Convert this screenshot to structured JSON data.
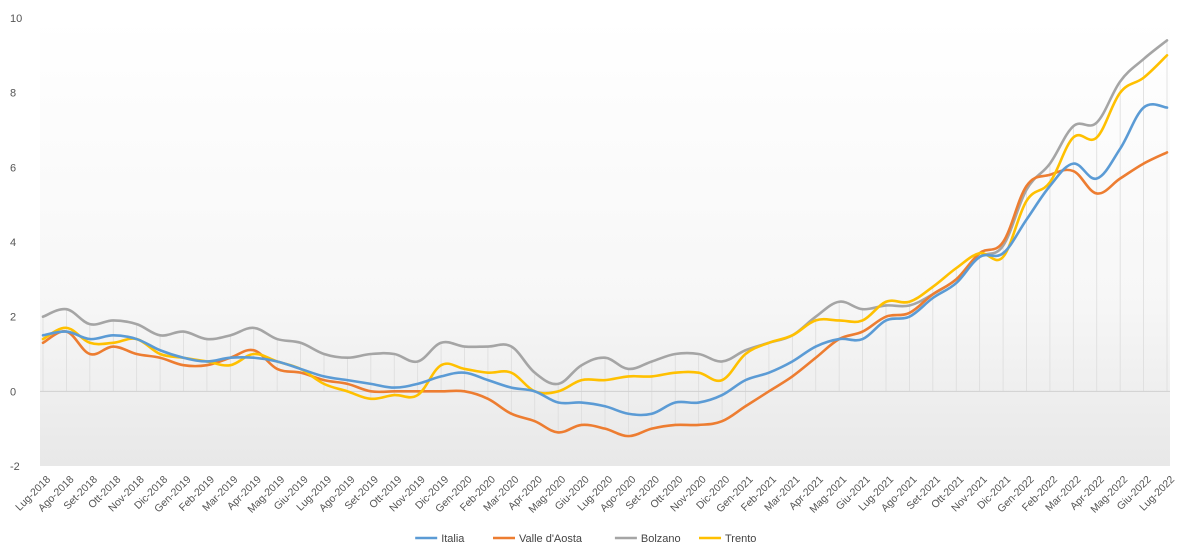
{
  "chart_data": {
    "type": "line",
    "title": "",
    "xlabel": "",
    "ylabel": "",
    "ylim": [
      -2,
      10
    ],
    "yticks": [
      "-2",
      "0",
      "2",
      "4",
      "6",
      "8",
      "10"
    ],
    "grid": "vertical-lines",
    "legend_position": "bottom",
    "categories": [
      "Lug-2018",
      "Ago-2018",
      "Set-2018",
      "Ott-2018",
      "Nov-2018",
      "Dic-2018",
      "Gen-2019",
      "Feb-2019",
      "Mar-2019",
      "Apr-2019",
      "Mag-2019",
      "Giu-2019",
      "Lug-2019",
      "Ago-2019",
      "Set-2019",
      "Ott-2019",
      "Nov-2019",
      "Dic-2019",
      "Gen-2020",
      "Feb-2020",
      "Mar-2020",
      "Apr-2020",
      "Mag-2020",
      "Giu-2020",
      "Lug-2020",
      "Ago-2020",
      "Set-2020",
      "Ott-2020",
      "Nov-2020",
      "Dic-2020",
      "Gen-2021",
      "Feb-2021",
      "Mar-2021",
      "Apr-2021",
      "Mag-2021",
      "Giu-2021",
      "Lug-2021",
      "Ago-2021",
      "Set-2021",
      "Ott-2021",
      "Nov-2021",
      "Dic-2021",
      "Gen-2022",
      "Feb-2022",
      "Mar-2022",
      "Apr-2022",
      "Mag-2022",
      "Giu-2022",
      "Lug-2022"
    ],
    "series": [
      {
        "name": "Italia",
        "color": "#5b9bd5",
        "values": [
          1.5,
          1.6,
          1.4,
          1.5,
          1.4,
          1.1,
          0.9,
          0.8,
          0.9,
          0.9,
          0.8,
          0.6,
          0.4,
          0.3,
          0.2,
          0.1,
          0.2,
          0.4,
          0.5,
          0.3,
          0.1,
          0.0,
          -0.3,
          -0.3,
          -0.4,
          -0.6,
          -0.6,
          -0.3,
          -0.3,
          -0.1,
          0.3,
          0.5,
          0.8,
          1.2,
          1.4,
          1.4,
          1.9,
          2.0,
          2.5,
          2.9,
          3.6,
          3.7,
          4.6,
          5.5,
          6.1,
          5.7,
          6.5,
          7.6,
          7.6
        ]
      },
      {
        "name": "Valle d'Aosta",
        "color": "#ed7d31",
        "values": [
          1.3,
          1.6,
          1.0,
          1.2,
          1.0,
          0.9,
          0.7,
          0.7,
          0.9,
          1.1,
          0.6,
          0.5,
          0.3,
          0.2,
          0.0,
          0.0,
          0.0,
          0.0,
          0.0,
          -0.2,
          -0.6,
          -0.8,
          -1.1,
          -0.9,
          -1.0,
          -1.2,
          -1.0,
          -0.9,
          -0.9,
          -0.8,
          -0.4,
          0.0,
          0.4,
          0.9,
          1.4,
          1.6,
          2.0,
          2.1,
          2.6,
          3.0,
          3.7,
          4.0,
          5.5,
          5.8,
          5.9,
          5.3,
          5.7,
          6.1,
          6.4
        ]
      },
      {
        "name": "Bolzano",
        "color": "#a5a5a5",
        "values": [
          2.0,
          2.2,
          1.8,
          1.9,
          1.8,
          1.5,
          1.6,
          1.4,
          1.5,
          1.7,
          1.4,
          1.3,
          1.0,
          0.9,
          1.0,
          1.0,
          0.8,
          1.3,
          1.2,
          1.2,
          1.2,
          0.5,
          0.2,
          0.7,
          0.9,
          0.6,
          0.8,
          1.0,
          1.0,
          0.8,
          1.1,
          1.3,
          1.5,
          2.0,
          2.4,
          2.2,
          2.3,
          2.3,
          2.6,
          3.0,
          3.6,
          3.9,
          5.4,
          6.1,
          7.1,
          7.2,
          8.3,
          8.9,
          9.4
        ]
      },
      {
        "name": "Trento",
        "color": "#ffc000",
        "values": [
          1.4,
          1.7,
          1.3,
          1.3,
          1.4,
          1.0,
          0.9,
          0.8,
          0.7,
          1.0,
          0.8,
          0.6,
          0.2,
          0.0,
          -0.2,
          -0.1,
          -0.1,
          0.7,
          0.6,
          0.5,
          0.5,
          0.0,
          0.0,
          0.3,
          0.3,
          0.4,
          0.4,
          0.5,
          0.5,
          0.3,
          1.0,
          1.3,
          1.5,
          1.9,
          1.9,
          1.9,
          2.4,
          2.4,
          2.8,
          3.3,
          3.7,
          3.6,
          5.1,
          5.6,
          6.8,
          6.8,
          8.0,
          8.4,
          9.0
        ]
      }
    ]
  }
}
